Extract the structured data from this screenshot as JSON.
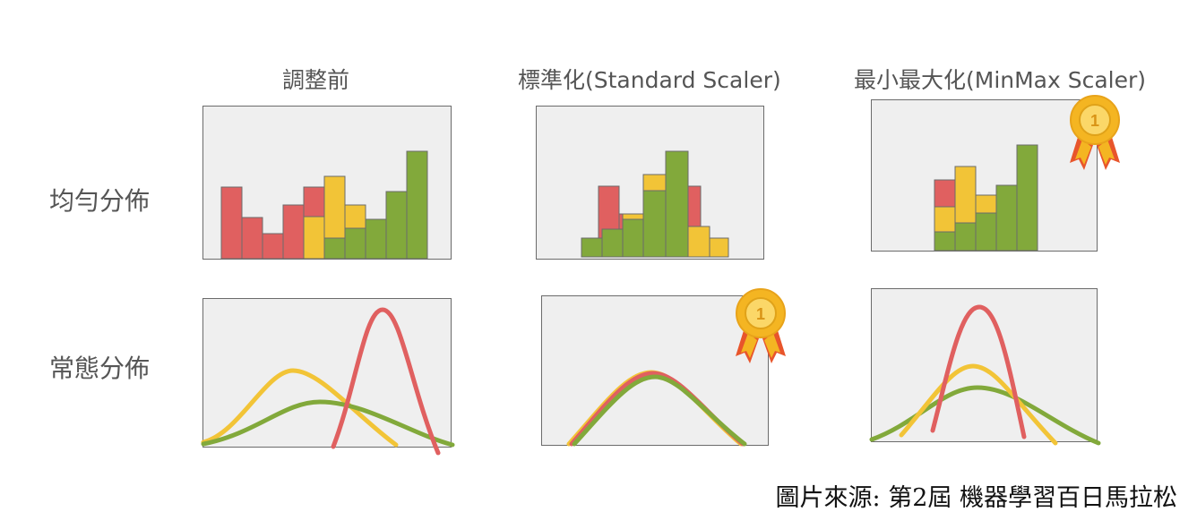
{
  "columns": [
    "調整前",
    "標準化(Standard Scaler)",
    "最小最大化(MinMax Scaler)"
  ],
  "rows": [
    "均勻分佈",
    "常態分佈"
  ],
  "caption": "圖片來源: 第2屆 機器學習百日馬拉松",
  "medal_digit": "1",
  "colors": {
    "red": "#e06060",
    "yellow": "#f2c437",
    "green": "#82a93b",
    "panel_bg": "#efefef",
    "medal_gold": "#f4b522",
    "medal_ribbon": "#e8552b"
  }
}
